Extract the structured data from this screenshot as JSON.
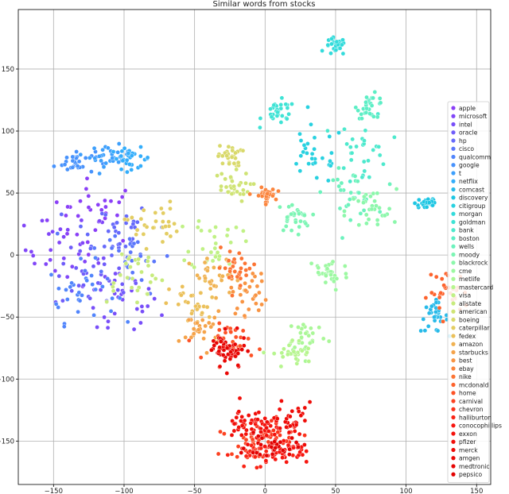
{
  "chart_data": {
    "type": "scatter",
    "title": "Similar words from stocks",
    "xlabel": "",
    "ylabel": "",
    "xlim": [
      -175,
      160
    ],
    "ylim": [
      -185,
      198
    ],
    "xticks": [
      -150,
      -100,
      -50,
      0,
      50,
      100,
      150
    ],
    "yticks": [
      -150,
      -100,
      -50,
      0,
      50,
      100,
      150
    ],
    "grid": true,
    "legend_position": "right",
    "colormap": "rainbow",
    "series": [
      {
        "name": "apple",
        "color": "#8a3ff7",
        "cx": -120,
        "cy": 35,
        "sx": 28,
        "sy": 22,
        "n": 30
      },
      {
        "name": "microsoft",
        "color": "#8146f8",
        "cx": -140,
        "cy": 5,
        "sx": 25,
        "sy": 25,
        "n": 30
      },
      {
        "name": "intel",
        "color": "#784ef9",
        "cx": -105,
        "cy": -40,
        "sx": 25,
        "sy": 25,
        "n": 30
      },
      {
        "name": "oracle",
        "color": "#6f5cfa",
        "cx": -120,
        "cy": -20,
        "sx": 25,
        "sy": 20,
        "n": 30
      },
      {
        "name": "hp",
        "color": "#6569fb",
        "cx": -110,
        "cy": 20,
        "sx": 25,
        "sy": 20,
        "n": 30
      },
      {
        "name": "cisco",
        "color": "#5b77fb",
        "cx": -95,
        "cy": 0,
        "sx": 25,
        "sy": 25,
        "n": 30
      },
      {
        "name": "qualcomm",
        "color": "#5185fc",
        "cx": -130,
        "cy": -30,
        "sx": 20,
        "sy": 20,
        "n": 30
      },
      {
        "name": "google",
        "color": "#4792fc",
        "cx": -135,
        "cy": 75,
        "sx": 12,
        "sy": 8,
        "n": 30
      },
      {
        "name": "t",
        "color": "#3d9ffc",
        "cx": -110,
        "cy": 80,
        "sx": 12,
        "sy": 7,
        "n": 30
      },
      {
        "name": "netflix",
        "color": "#33adfb",
        "cx": -95,
        "cy": 78,
        "sx": 12,
        "sy": 7,
        "n": 30
      },
      {
        "name": "comcast",
        "color": "#27bae9",
        "cx": 120,
        "cy": -50,
        "sx": 8,
        "sy": 10,
        "n": 30
      },
      {
        "name": "discovery",
        "color": "#1dc6e3",
        "cx": 115,
        "cy": 42,
        "sx": 7,
        "sy": 5,
        "n": 30
      },
      {
        "name": "citigroup",
        "color": "#28d1e0",
        "cx": 35,
        "cy": 80,
        "sx": 18,
        "sy": 20,
        "n": 30
      },
      {
        "name": "morgan",
        "color": "#33dbdb",
        "cx": 50,
        "cy": 168,
        "sx": 6,
        "sy": 6,
        "n": 30
      },
      {
        "name": "goldman",
        "color": "#3fe3d5",
        "cx": 10,
        "cy": 115,
        "sx": 10,
        "sy": 8,
        "n": 30
      },
      {
        "name": "bank",
        "color": "#4de9cd",
        "cx": 70,
        "cy": 85,
        "sx": 15,
        "sy": 25,
        "n": 30
      },
      {
        "name": "boston",
        "color": "#5ceec5",
        "cx": 75,
        "cy": 120,
        "sx": 8,
        "sy": 8,
        "n": 30
      },
      {
        "name": "wells",
        "color": "#6cf2bd",
        "cx": 60,
        "cy": 50,
        "sx": 15,
        "sy": 15,
        "n": 30
      },
      {
        "name": "moody",
        "color": "#7cf5b4",
        "cx": 20,
        "cy": 30,
        "sx": 10,
        "sy": 10,
        "n": 30
      },
      {
        "name": "blackrock",
        "color": "#8cf7ab",
        "cx": 75,
        "cy": 35,
        "sx": 15,
        "sy": 15,
        "n": 30
      },
      {
        "name": "cme",
        "color": "#9cf8a1",
        "cx": 45,
        "cy": -15,
        "sx": 12,
        "sy": 12,
        "n": 30
      },
      {
        "name": "metlife",
        "color": "#aaf797",
        "cx": 30,
        "cy": -65,
        "sx": 12,
        "sy": 12,
        "n": 30
      },
      {
        "name": "mastercard",
        "color": "#b6f58e",
        "cx": 20,
        "cy": -80,
        "sx": 12,
        "sy": 10,
        "n": 30
      },
      {
        "name": "visa",
        "color": "#c0f185",
        "cx": -35,
        "cy": 10,
        "sx": 15,
        "sy": 20,
        "n": 30
      },
      {
        "name": "allstate",
        "color": "#c7eb7d",
        "cx": -95,
        "cy": -15,
        "sx": 20,
        "sy": 20,
        "n": 30
      },
      {
        "name": "american",
        "color": "#cfe374",
        "cx": -25,
        "cy": 55,
        "sx": 12,
        "sy": 10,
        "n": 30
      },
      {
        "name": "boeing",
        "color": "#d9d96b",
        "cx": -25,
        "cy": 80,
        "sx": 7,
        "sy": 7,
        "n": 30
      },
      {
        "name": "caterpillar",
        "color": "#e3cd62",
        "cx": -80,
        "cy": 25,
        "sx": 15,
        "sy": 15,
        "n": 30
      },
      {
        "name": "fedex",
        "color": "#ebc05a",
        "cx": -50,
        "cy": -40,
        "sx": 15,
        "sy": 15,
        "n": 30
      },
      {
        "name": "amazon",
        "color": "#f0b252",
        "cx": -35,
        "cy": -20,
        "sx": 15,
        "sy": 15,
        "n": 30
      },
      {
        "name": "starbucks",
        "color": "#f5a34a",
        "cx": -45,
        "cy": -60,
        "sx": 12,
        "sy": 12,
        "n": 30
      },
      {
        "name": "best",
        "color": "#f89443",
        "cx": -10,
        "cy": -30,
        "sx": 12,
        "sy": 15,
        "n": 30
      },
      {
        "name": "ebay",
        "color": "#fb843c",
        "cx": 0,
        "cy": 48,
        "sx": 6,
        "sy": 5,
        "n": 30
      },
      {
        "name": "nike",
        "color": "#fc7434",
        "cx": -20,
        "cy": -10,
        "sx": 12,
        "sy": 12,
        "n": 30
      },
      {
        "name": "mcdonald",
        "color": "#fd632d",
        "cx": 130,
        "cy": -30,
        "sx": 12,
        "sy": 15,
        "n": 30
      },
      {
        "name": "home",
        "color": "#fd5327",
        "cx": -20,
        "cy": -70,
        "sx": 15,
        "sy": 12,
        "n": 30
      },
      {
        "name": "carnival",
        "color": "#fc4221",
        "cx": -10,
        "cy": -150,
        "sx": 18,
        "sy": 10,
        "n": 30
      },
      {
        "name": "chevron",
        "color": "#fb331b",
        "cx": 10,
        "cy": -145,
        "sx": 15,
        "sy": 10,
        "n": 30
      },
      {
        "name": "halliburton",
        "color": "#f92415",
        "cx": -5,
        "cy": -160,
        "sx": 15,
        "sy": 8,
        "n": 30
      },
      {
        "name": "conocophillips",
        "color": "#f7150f",
        "cx": 15,
        "cy": -160,
        "sx": 12,
        "sy": 8,
        "n": 30
      },
      {
        "name": "exxon",
        "color": "#f4110b",
        "cx": 0,
        "cy": -140,
        "sx": 15,
        "sy": 10,
        "n": 30
      },
      {
        "name": "pfizer",
        "color": "#f10e09",
        "cx": -15,
        "cy": -135,
        "sx": 12,
        "sy": 12,
        "n": 30
      },
      {
        "name": "merck",
        "color": "#ee0b07",
        "cx": 20,
        "cy": -135,
        "sx": 12,
        "sy": 12,
        "n": 30
      },
      {
        "name": "amgen",
        "color": "#ea0805",
        "cx": -25,
        "cy": -80,
        "sx": 10,
        "sy": 12,
        "n": 30
      },
      {
        "name": "medtronic",
        "color": "#e60503",
        "cx": -30,
        "cy": -75,
        "sx": 10,
        "sy": 10,
        "n": 30
      },
      {
        "name": "pepsico",
        "color": "#e20201",
        "cx": 5,
        "cy": -155,
        "sx": 15,
        "sy": 8,
        "n": 30
      }
    ]
  }
}
